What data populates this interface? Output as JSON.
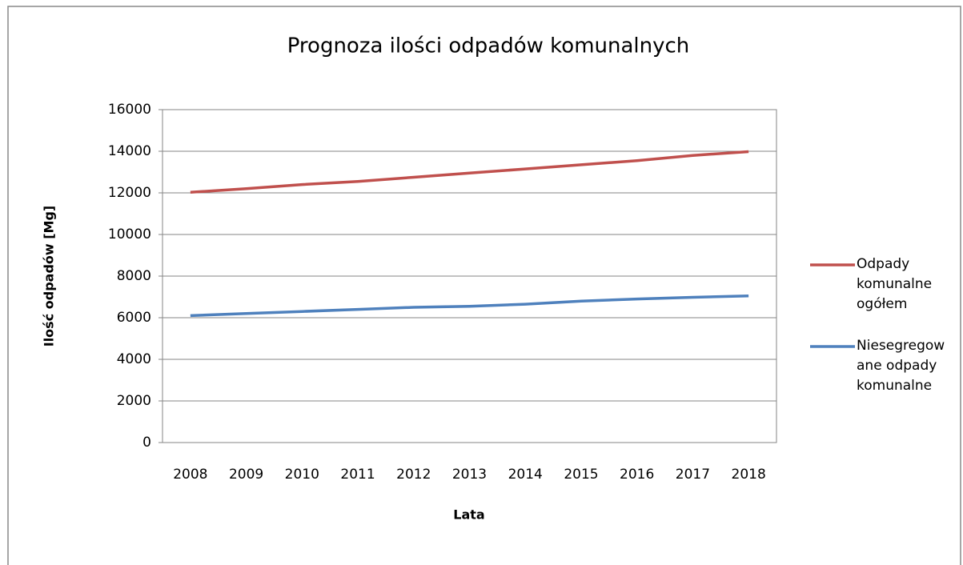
{
  "chart_data": {
    "type": "line",
    "title": "Prognoza ilości odpadów komunalnych",
    "x_label": "Lata",
    "y_label": "Ilość odpadów  [Mg]",
    "categories": [
      "2008",
      "2009",
      "2010",
      "2011",
      "2012",
      "2013",
      "2014",
      "2015",
      "2016",
      "2017",
      "2018"
    ],
    "series": [
      {
        "name": "Odpady komunalne ogółem",
        "color": "#c0504d",
        "values": [
          12030,
          12200,
          12400,
          12550,
          12750,
          12950,
          13150,
          13350,
          13550,
          13800,
          13980
        ]
      },
      {
        "name": "Niesegregowane odpady komunalne",
        "color": "#4f81bd",
        "values": [
          6100,
          6200,
          6300,
          6400,
          6500,
          6550,
          6650,
          6800,
          6900,
          6980,
          7050
        ]
      }
    ],
    "ylim": [
      0,
      16000
    ],
    "yticks": [
      0,
      2000,
      4000,
      6000,
      8000,
      10000,
      12000,
      14000,
      16000
    ],
    "grid": true,
    "legend": "right"
  }
}
